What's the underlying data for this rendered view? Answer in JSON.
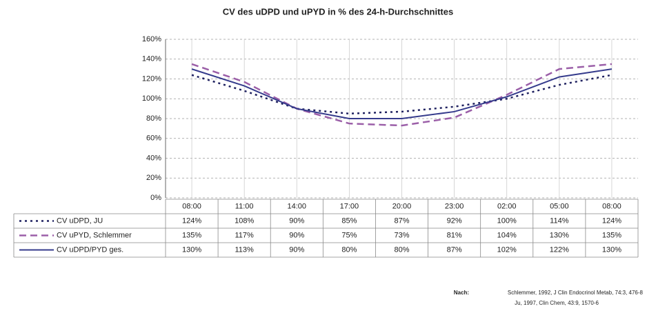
{
  "chart_data": {
    "type": "line",
    "title": "CV des uDPD und uPYD in % des 24-h-Durchschnittes",
    "categories": [
      "08:00",
      "11:00",
      "14:00",
      "17:00",
      "20:00",
      "23:00",
      "02:00",
      "05:00",
      "08:00"
    ],
    "series": [
      {
        "name": "CV uDPD, JU",
        "color": "#1f2160",
        "dash": "dotted",
        "values": [
          124,
          108,
          90,
          85,
          87,
          92,
          100,
          114,
          124
        ],
        "value_labels": [
          "124%",
          "108%",
          "90%",
          "85%",
          "87%",
          "92%",
          "100%",
          "114%",
          "124%"
        ]
      },
      {
        "name": "CV uPYD, Schlemmer",
        "color": "#9b5fa8",
        "dash": "dashed",
        "values": [
          135,
          117,
          90,
          75,
          73,
          81,
          104,
          130,
          135
        ],
        "value_labels": [
          "135%",
          "117%",
          "90%",
          "75%",
          "73%",
          "81%",
          "104%",
          "130%",
          "135%"
        ]
      },
      {
        "name": "CV uDPD/PYD ges.",
        "color": "#353b8c",
        "dash": "solid",
        "values": [
          130,
          113,
          90,
          80,
          80,
          87,
          102,
          122,
          130
        ],
        "value_labels": [
          "130%",
          "113%",
          "90%",
          "80%",
          "80%",
          "87%",
          "102%",
          "122%",
          "130%"
        ]
      }
    ],
    "ylim": [
      0,
      160
    ],
    "yticks": [
      {
        "value": 0,
        "label": "0%"
      },
      {
        "value": 20,
        "label": "20%"
      },
      {
        "value": 40,
        "label": "40%"
      },
      {
        "value": 60,
        "label": "60%"
      },
      {
        "value": 80,
        "label": "80%"
      },
      {
        "value": 100,
        "label": "100%"
      },
      {
        "value": 120,
        "label": "120%"
      },
      {
        "value": 140,
        "label": "140%"
      },
      {
        "value": 160,
        "label": "160%"
      }
    ],
    "grid": true,
    "source": {
      "prefix": "Nach:",
      "lines": [
        "Schlemmer, 1992, J Clin Endocrinol Metab, 74:3, 476-8",
        "Ju, 1997, Clin Chem, 43:9, 1570-6"
      ]
    }
  }
}
